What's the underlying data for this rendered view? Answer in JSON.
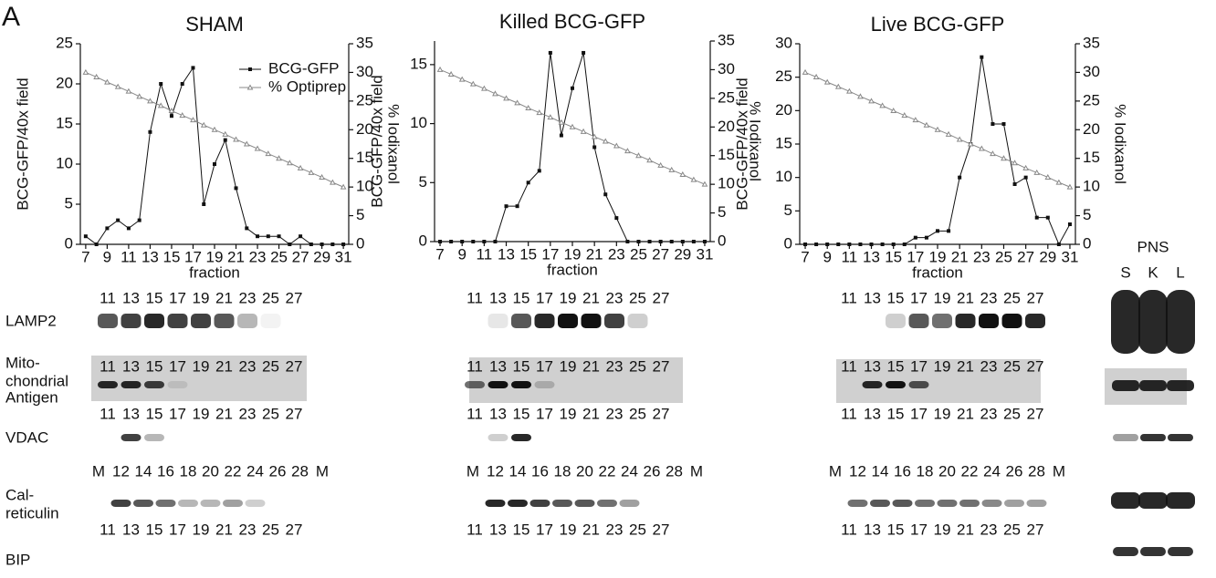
{
  "panel_label": "A",
  "chart_data": [
    {
      "type": "line",
      "title": "SHAM",
      "xlabel": "fraction",
      "ylabel": "BCG-GFP/40x field",
      "y2label": "% Iodixanol",
      "legend": "upper right",
      "x": [
        7,
        8,
        9,
        10,
        11,
        12,
        13,
        14,
        15,
        16,
        17,
        18,
        19,
        20,
        21,
        22,
        23,
        24,
        25,
        26,
        27,
        28,
        29,
        30,
        31
      ],
      "xlim": [
        6.5,
        31.5
      ],
      "xticks": [
        7,
        9,
        11,
        13,
        15,
        17,
        19,
        21,
        23,
        25,
        27,
        29,
        31
      ],
      "ylim": [
        0,
        25
      ],
      "yticks": [
        0,
        5,
        10,
        15,
        20,
        25
      ],
      "y2lim": [
        0,
        35
      ],
      "y2ticks": [
        0,
        5,
        10,
        15,
        20,
        25,
        30,
        35
      ],
      "series": [
        {
          "name": "BCG-GFP",
          "color": "#111111",
          "values": [
            1,
            0,
            2,
            3,
            2,
            3,
            14,
            20,
            16,
            20,
            22,
            5,
            10,
            13,
            7,
            2,
            1,
            1,
            1,
            0,
            1,
            0,
            0,
            0,
            0
          ]
        },
        {
          "name": "% Optiprep",
          "color": "#888888",
          "axis": "y2",
          "values": [
            30,
            29.2,
            28.3,
            27.5,
            26.7,
            25.8,
            25,
            24.2,
            23.3,
            22.5,
            21.7,
            20.8,
            20,
            19.2,
            18.3,
            17.5,
            16.7,
            15.8,
            15,
            14.2,
            13.3,
            12.5,
            11.7,
            10.8,
            10
          ]
        }
      ]
    },
    {
      "type": "line",
      "title": "Killed BCG-GFP",
      "xlabel": "fraction",
      "ylabel": "BCG-GFP/40x field",
      "y2label": "% Iodixanol",
      "x": [
        7,
        8,
        9,
        10,
        11,
        12,
        13,
        14,
        15,
        16,
        17,
        18,
        19,
        20,
        21,
        22,
        23,
        24,
        25,
        26,
        27,
        28,
        29,
        30,
        31
      ],
      "xlim": [
        6.5,
        31.5
      ],
      "xticks": [
        7,
        9,
        11,
        13,
        15,
        17,
        19,
        21,
        23,
        25,
        27,
        29,
        31
      ],
      "ylim": [
        0,
        17
      ],
      "yticks": [
        0,
        5,
        10,
        15
      ],
      "y2lim": [
        0,
        35
      ],
      "y2ticks": [
        0,
        5,
        10,
        15,
        20,
        25,
        30,
        35
      ],
      "series": [
        {
          "color": "#111111",
          "values": [
            0,
            0,
            0,
            0,
            0,
            0,
            3,
            3,
            5,
            6,
            16,
            9,
            13,
            16,
            8,
            4,
            2,
            0,
            0,
            0,
            0,
            0,
            0,
            0,
            0
          ]
        },
        {
          "color": "#888888",
          "axis": "y2",
          "values": [
            30,
            29.2,
            28.3,
            27.5,
            26.7,
            25.8,
            25,
            24.2,
            23.3,
            22.5,
            21.7,
            20.8,
            20,
            19.2,
            18.3,
            17.5,
            16.7,
            15.8,
            15,
            14.2,
            13.3,
            12.5,
            11.7,
            10.8,
            10
          ]
        }
      ]
    },
    {
      "type": "line",
      "title": "Live BCG-GFP",
      "xlabel": "fraction",
      "ylabel": "BCG-GFP/40x field",
      "y2label": "% Iodixanol",
      "x": [
        7,
        8,
        9,
        10,
        11,
        12,
        13,
        14,
        15,
        16,
        17,
        18,
        19,
        20,
        21,
        22,
        23,
        24,
        25,
        26,
        27,
        28,
        29,
        30,
        31
      ],
      "xlim": [
        6.5,
        31.5
      ],
      "xticks": [
        7,
        9,
        11,
        13,
        15,
        17,
        19,
        21,
        23,
        25,
        27,
        29,
        31
      ],
      "ylim": [
        0,
        30
      ],
      "yticks": [
        0,
        5,
        10,
        15,
        20,
        25,
        30
      ],
      "y2lim": [
        0,
        35
      ],
      "y2ticks": [
        0,
        5,
        10,
        15,
        20,
        25,
        30,
        35
      ],
      "series": [
        {
          "color": "#111111",
          "values": [
            0,
            0,
            0,
            0,
            0,
            0,
            0,
            0,
            0,
            0,
            1,
            1,
            2,
            2,
            10,
            15,
            28,
            18,
            18,
            9,
            10,
            4,
            4,
            0,
            3
          ]
        },
        {
          "color": "#888888",
          "axis": "y2",
          "values": [
            30,
            29.2,
            28.3,
            27.5,
            26.7,
            25.8,
            25,
            24.2,
            23.3,
            22.5,
            21.7,
            20.8,
            20,
            19.2,
            18.3,
            17.5,
            16.7,
            15.8,
            15,
            14.2,
            13.3,
            12.5,
            11.7,
            10.8,
            10
          ]
        }
      ]
    }
  ],
  "blots": {
    "row_labels": [
      [
        "LAMP2"
      ],
      [
        "Mito-",
        "chondrial",
        "Antigen"
      ],
      [
        "VDAC"
      ],
      [
        "Cal-",
        "reticulin"
      ],
      [
        "BIP"
      ]
    ],
    "panels": [
      {
        "lane_rows": [
          [
            "11",
            "13",
            "15",
            "17",
            "19",
            "21",
            "23",
            "25",
            "27"
          ],
          [
            "11",
            "13",
            "15",
            "17",
            "19",
            "21",
            "23",
            "25",
            "27"
          ],
          [
            "11",
            "13",
            "15",
            "17",
            "19",
            "21",
            "23",
            "25",
            "27"
          ],
          [
            "M",
            "12",
            "14",
            "16",
            "18",
            "20",
            "22",
            "24",
            "26",
            "28",
            "M"
          ],
          [
            "11",
            "13",
            "15",
            "17",
            "19",
            "21",
            "23",
            "25",
            "27"
          ]
        ]
      },
      {
        "lane_rows": [
          [
            "11",
            "13",
            "15",
            "17",
            "19",
            "21",
            "23",
            "25",
            "27"
          ],
          [
            "11",
            "13",
            "15",
            "17",
            "19",
            "21",
            "23",
            "25",
            "27"
          ],
          [
            "11",
            "13",
            "15",
            "17",
            "19",
            "21",
            "23",
            "25",
            "27"
          ],
          [
            "M",
            "12",
            "14",
            "16",
            "18",
            "20",
            "22",
            "24",
            "26",
            "28",
            "M"
          ],
          [
            "11",
            "13",
            "15",
            "17",
            "19",
            "21",
            "23",
            "25",
            "27"
          ]
        ]
      },
      {
        "lane_rows": [
          [
            "11",
            "13",
            "15",
            "17",
            "19",
            "21",
            "23",
            "25",
            "27"
          ],
          [
            "11",
            "13",
            "15",
            "17",
            "19",
            "21",
            "23",
            "25",
            "27"
          ],
          [
            "11",
            "13",
            "15",
            "17",
            "19",
            "21",
            "23",
            "25",
            "27"
          ],
          [
            "M",
            "12",
            "14",
            "16",
            "18",
            "20",
            "22",
            "24",
            "26",
            "28",
            "M"
          ],
          [
            "11",
            "13",
            "15",
            "17",
            "19",
            "21",
            "23",
            "25",
            "27"
          ]
        ]
      }
    ],
    "pns": {
      "title": "PNS",
      "lanes": [
        "S",
        "K",
        "L"
      ]
    }
  }
}
